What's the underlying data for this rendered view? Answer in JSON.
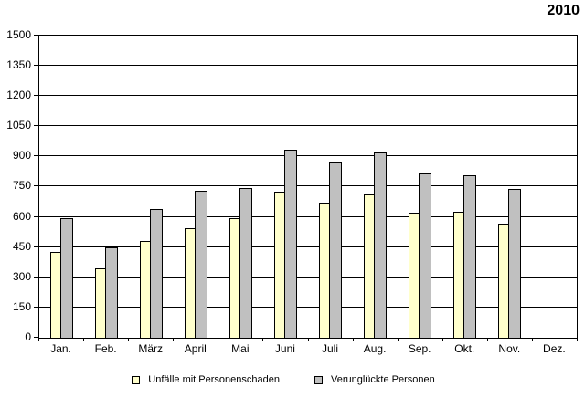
{
  "title": "2010",
  "chart_data": {
    "type": "bar",
    "title": "2010",
    "categories": [
      "Jan.",
      "Feb.",
      "März",
      "April",
      "Mai",
      "Juni",
      "Juli",
      "Aug.",
      "Sep.",
      "Okt.",
      "Nov.",
      "Dez."
    ],
    "series": [
      {
        "name": "Unfälle mit Personenschaden",
        "color": "#ffffcc",
        "values": [
          425,
          345,
          480,
          545,
          595,
          725,
          670,
          710,
          620,
          625,
          565,
          0
        ]
      },
      {
        "name": "Verunglückte Personen",
        "color": "#c0c0c0",
        "values": [
          595,
          450,
          640,
          730,
          745,
          935,
          870,
          920,
          815,
          805,
          740,
          0
        ]
      }
    ],
    "xlabel": "",
    "ylabel": "",
    "ylim": [
      0,
      1500
    ],
    "ytick_step": 150,
    "grid": "horizontal",
    "gridline_color": "#000000",
    "axis_color": "#000000",
    "legend_position": "bottom"
  }
}
